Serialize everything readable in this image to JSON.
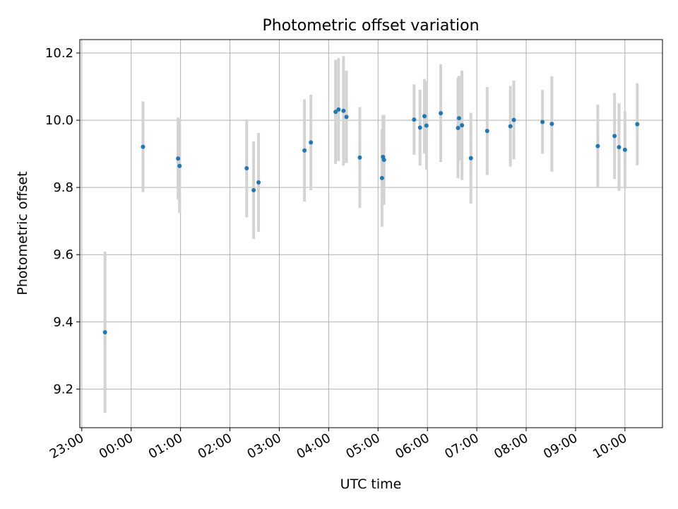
{
  "chart_data": {
    "type": "scatter",
    "title": "Photometric offset variation",
    "xlabel": "UTC time",
    "ylabel": "Photometric offset",
    "x_unit": "hours relative to 00:00 UTC",
    "xlim": [
      -1.04,
      10.76
    ],
    "ylim": [
      9.085,
      10.24
    ],
    "x_ticks": [
      {
        "value": -1,
        "label": "23:00"
      },
      {
        "value": 0,
        "label": "00:00"
      },
      {
        "value": 1,
        "label": "01:00"
      },
      {
        "value": 2,
        "label": "02:00"
      },
      {
        "value": 3,
        "label": "03:00"
      },
      {
        "value": 4,
        "label": "04:00"
      },
      {
        "value": 5,
        "label": "05:00"
      },
      {
        "value": 6,
        "label": "06:00"
      },
      {
        "value": 7,
        "label": "07:00"
      },
      {
        "value": 8,
        "label": "08:00"
      },
      {
        "value": 9,
        "label": "09:00"
      },
      {
        "value": 10,
        "label": "10:00"
      }
    ],
    "y_ticks": [
      {
        "value": 9.2,
        "label": "9.2"
      },
      {
        "value": 9.4,
        "label": "9.4"
      },
      {
        "value": 9.6,
        "label": "9.6"
      },
      {
        "value": 9.8,
        "label": "9.8"
      },
      {
        "value": 10.0,
        "label": "10.0"
      },
      {
        "value": 10.2,
        "label": "10.2"
      }
    ],
    "grid": true,
    "point_color": "#1f77b4",
    "error_color": "#d3d3d3",
    "points": [
      {
        "x": -0.53,
        "y": 9.369,
        "err": 0.24
      },
      {
        "x": 0.24,
        "y": 9.921,
        "err": 0.135
      },
      {
        "x": 0.95,
        "y": 9.886,
        "err": 0.122
      },
      {
        "x": 0.98,
        "y": 9.864,
        "err": 0.14
      },
      {
        "x": 2.34,
        "y": 9.857,
        "err": 0.146
      },
      {
        "x": 2.48,
        "y": 9.792,
        "err": 0.145
      },
      {
        "x": 2.58,
        "y": 9.815,
        "err": 0.147
      },
      {
        "x": 3.51,
        "y": 9.91,
        "err": 0.152
      },
      {
        "x": 3.64,
        "y": 9.934,
        "err": 0.142
      },
      {
        "x": 4.14,
        "y": 10.025,
        "err": 0.155
      },
      {
        "x": 4.2,
        "y": 10.032,
        "err": 0.153
      },
      {
        "x": 4.3,
        "y": 10.028,
        "err": 0.163
      },
      {
        "x": 4.36,
        "y": 10.01,
        "err": 0.137
      },
      {
        "x": 4.63,
        "y": 9.889,
        "err": 0.15
      },
      {
        "x": 5.08,
        "y": 9.828,
        "err": 0.145
      },
      {
        "x": 5.1,
        "y": 9.891,
        "err": 0.125
      },
      {
        "x": 5.12,
        "y": 9.882,
        "err": 0.134
      },
      {
        "x": 5.73,
        "y": 10.002,
        "err": 0.105
      },
      {
        "x": 5.85,
        "y": 9.978,
        "err": 0.113
      },
      {
        "x": 5.94,
        "y": 10.012,
        "err": 0.111
      },
      {
        "x": 5.98,
        "y": 9.984,
        "err": 0.132
      },
      {
        "x": 6.27,
        "y": 10.021,
        "err": 0.145
      },
      {
        "x": 6.62,
        "y": 9.977,
        "err": 0.15
      },
      {
        "x": 6.64,
        "y": 10.006,
        "err": 0.126
      },
      {
        "x": 6.7,
        "y": 9.985,
        "err": 0.163
      },
      {
        "x": 6.88,
        "y": 9.887,
        "err": 0.135
      },
      {
        "x": 7.21,
        "y": 9.968,
        "err": 0.131
      },
      {
        "x": 7.68,
        "y": 9.982,
        "err": 0.12
      },
      {
        "x": 7.75,
        "y": 10.001,
        "err": 0.117
      },
      {
        "x": 8.33,
        "y": 9.995,
        "err": 0.095
      },
      {
        "x": 8.52,
        "y": 9.989,
        "err": 0.142
      },
      {
        "x": 9.45,
        "y": 9.923,
        "err": 0.123
      },
      {
        "x": 9.79,
        "y": 9.953,
        "err": 0.128
      },
      {
        "x": 9.88,
        "y": 9.92,
        "err": 0.13
      },
      {
        "x": 10.0,
        "y": 9.912,
        "err": 0.115
      },
      {
        "x": 10.25,
        "y": 9.988,
        "err": 0.122
      }
    ]
  }
}
